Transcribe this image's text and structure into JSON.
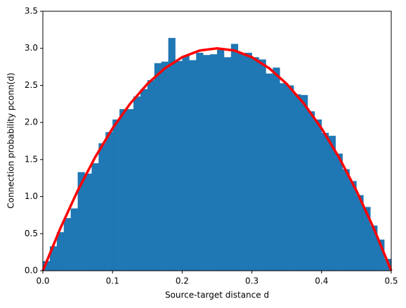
{
  "chart_data": {
    "type": "histogram",
    "xlabel": "Source-target distance d",
    "ylabel": "Connection probability pconn(d)",
    "bins": [
      0,
      0.01,
      0.02,
      0.03,
      0.04,
      0.05,
      0.06,
      0.07,
      0.08,
      0.09,
      0.1,
      0.11,
      0.12,
      0.13,
      0.14,
      0.15,
      0.16,
      0.17,
      0.18,
      0.19,
      0.2,
      0.21,
      0.22,
      0.23,
      0.24,
      0.25,
      0.26,
      0.27,
      0.28,
      0.29,
      0.3,
      0.31,
      0.32,
      0.33,
      0.34,
      0.35,
      0.36,
      0.37,
      0.38,
      0.39,
      0.4,
      0.41,
      0.42,
      0.43,
      0.44,
      0.45,
      0.46,
      0.47,
      0.48,
      0.49,
      0.5
    ],
    "values": [
      0.13,
      0.33,
      0.52,
      0.71,
      0.84,
      1.33,
      1.31,
      1.45,
      1.72,
      1.87,
      2.04,
      2.18,
      2.18,
      2.35,
      2.45,
      2.57,
      2.8,
      2.82,
      3.14,
      2.83,
      2.9,
      2.84,
      2.94,
      2.91,
      2.92,
      2.98,
      2.88,
      3.06,
      2.93,
      2.94,
      2.88,
      2.85,
      2.66,
      2.74,
      2.53,
      2.5,
      2.38,
      2.37,
      2.15,
      2.04,
      1.86,
      1.82,
      1.58,
      1.37,
      1.21,
      1.02,
      0.86,
      0.61,
      0.42,
      0.16
    ],
    "color": "#1f77b4",
    "series": [
      {
        "type": "line",
        "color": "#ff0000",
        "x": [
          0,
          0.025,
          0.05,
          0.075,
          0.1,
          0.125,
          0.15,
          0.175,
          0.2,
          0.225,
          0.25,
          0.275,
          0.3,
          0.325,
          0.35,
          0.375,
          0.4,
          0.425,
          0.45,
          0.475,
          0.5
        ],
        "values": [
          0,
          0.57,
          1.08,
          1.53,
          1.92,
          2.25,
          2.52,
          2.73,
          2.88,
          2.97,
          3.0,
          2.97,
          2.88,
          2.73,
          2.52,
          2.25,
          1.92,
          1.53,
          1.08,
          0.57,
          0
        ]
      }
    ],
    "xlim": [
      0,
      0.5
    ],
    "xticks": [
      {
        "value": 0,
        "label": "0.0"
      },
      0.1,
      0.2,
      0.3,
      0.4,
      0.5
    ],
    "ylim": [
      0,
      3.5
    ],
    "yticks": [
      {
        "value": 0,
        "label": "0.0"
      },
      0.5,
      {
        "value": 1,
        "label": "1.0"
      },
      1.5,
      {
        "value": 2,
        "label": "2.0"
      },
      2.5,
      {
        "value": 3,
        "label": "3.0"
      },
      3.5
    ]
  }
}
